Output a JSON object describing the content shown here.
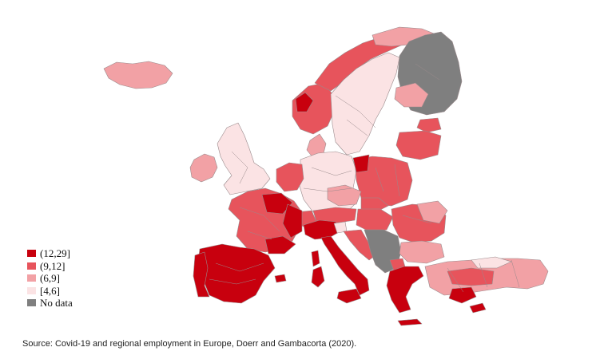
{
  "colors": {
    "c12_29": "#c8000e",
    "c9_12": "#e7545c",
    "c6_9": "#f2a1a5",
    "c4_6": "#fbe3e4",
    "nodata": "#7f7f7f",
    "border": "#9a8a8c"
  },
  "legend": [
    {
      "label": "(12,29]",
      "color": "#c8000e"
    },
    {
      "label": "(9,12]",
      "color": "#e7545c"
    },
    {
      "label": "(6,9]",
      "color": "#f2a1a5"
    },
    {
      "label": "[4,6]",
      "color": "#fbe3e4"
    },
    {
      "label": "No data",
      "color": "#7f7f7f"
    }
  ],
  "source": "Source: Covid-19 and regional employment in Europe, Doerr and Gambacorta (2020)."
}
